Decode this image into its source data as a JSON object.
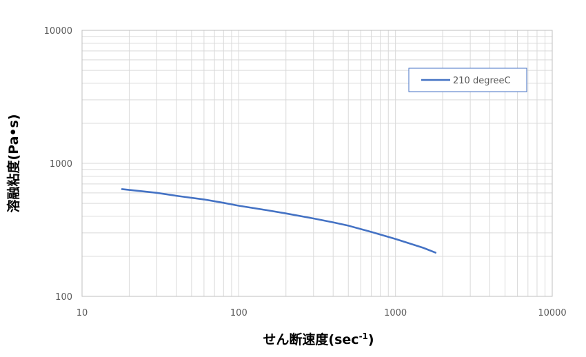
{
  "chart_data": {
    "type": "line",
    "x_scale": "log",
    "y_scale": "log",
    "xlabel": "せん断速度(sec",
    "xlabel_superscript": "-1",
    "xlabel_suffix": ")",
    "ylabel": "溶融粘度(Pa•s)",
    "xlim": [
      10,
      10000
    ],
    "ylim": [
      100,
      10000
    ],
    "x_ticks": [
      10,
      100,
      1000,
      10000
    ],
    "y_ticks": [
      100,
      1000,
      10000
    ],
    "x_tick_labels": [
      "10",
      "100",
      "1000",
      "10000"
    ],
    "y_tick_labels": [
      "100",
      "1000",
      "10000"
    ],
    "grid": true,
    "minor_grid": true,
    "legend_position": "top-right",
    "series": [
      {
        "name": "210 degreeC",
        "color": "#4472c4",
        "x": [
          18,
          30,
          40,
          60,
          80,
          100,
          150,
          200,
          300,
          400,
          500,
          700,
          1000,
          1500,
          1800
        ],
        "y": [
          640,
          600,
          570,
          535,
          505,
          480,
          445,
          420,
          385,
          360,
          340,
          305,
          270,
          232,
          213
        ]
      }
    ]
  }
}
